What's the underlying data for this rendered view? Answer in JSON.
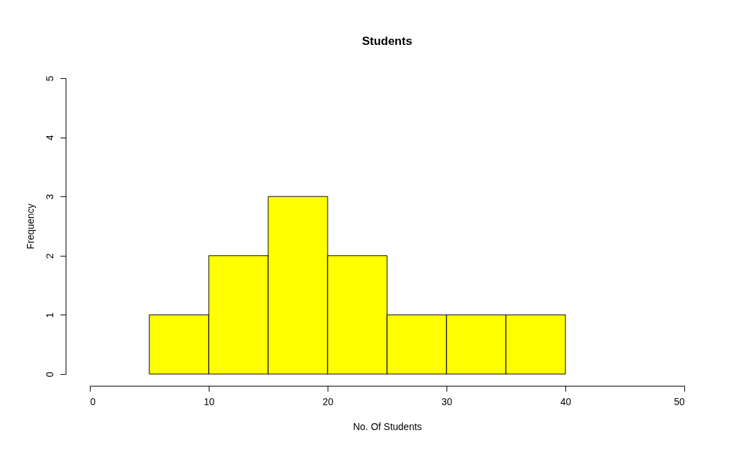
{
  "chart_data": {
    "type": "histogram",
    "title": "Students",
    "xlabel": "No. Of Students",
    "ylabel": "Frequency",
    "bins": [
      5,
      10,
      15,
      20,
      25,
      30,
      35,
      40
    ],
    "values": [
      1,
      2,
      3,
      2,
      1,
      1,
      1
    ],
    "color": "#ffff00",
    "xlim": [
      0,
      50
    ],
    "xticks": [
      0,
      10,
      20,
      30,
      40,
      50
    ],
    "ylim": [
      0,
      5
    ],
    "yticks": [
      0,
      1,
      2,
      3,
      4,
      5
    ],
    "grid": false
  }
}
